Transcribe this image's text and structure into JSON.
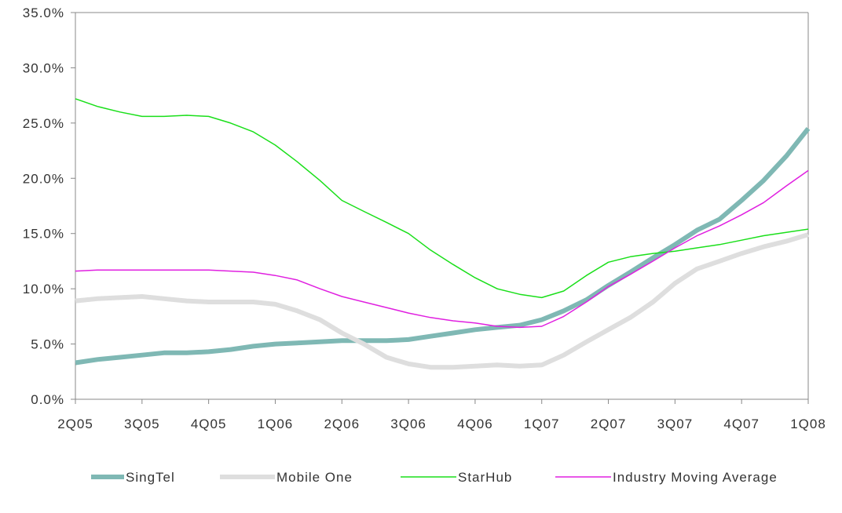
{
  "chart_data": {
    "type": "line",
    "title": "",
    "xlabel": "",
    "ylabel": "",
    "categories": [
      "2Q05",
      "3Q05",
      "4Q05",
      "1Q06",
      "2Q06",
      "3Q06",
      "4Q06",
      "1Q07",
      "2Q07",
      "3Q07",
      "4Q07",
      "1Q08"
    ],
    "y_ticks": [
      "0.0%",
      "5.0%",
      "10.0%",
      "15.0%",
      "20.0%",
      "25.0%",
      "30.0%",
      "35.0%"
    ],
    "ylim": [
      0,
      35
    ],
    "grid": false,
    "legend_position": "bottom",
    "series": [
      {
        "name": "SingTel",
        "color": "#7fb8b4",
        "width": 6,
        "x": [
          0,
          0.33,
          0.67,
          1,
          1.33,
          1.67,
          2,
          2.33,
          2.67,
          3,
          3.33,
          3.67,
          4,
          4.33,
          4.67,
          5,
          5.33,
          5.67,
          6,
          6.33,
          6.67,
          7,
          7.33,
          7.67,
          8,
          8.33,
          8.67,
          9,
          9.33,
          9.67,
          10,
          10.33,
          10.67,
          11
        ],
        "values": [
          3.3,
          3.6,
          3.8,
          4.0,
          4.2,
          4.2,
          4.3,
          4.5,
          4.8,
          5.0,
          5.1,
          5.2,
          5.3,
          5.3,
          5.3,
          5.4,
          5.7,
          6.0,
          6.3,
          6.5,
          6.7,
          7.2,
          8.0,
          9.0,
          10.3,
          11.5,
          12.8,
          14.0,
          15.3,
          16.3,
          18.0,
          19.8,
          22.0,
          24.5
        ]
      },
      {
        "name": "Mobile One",
        "color": "#dedede",
        "width": 6,
        "x": [
          0,
          0.33,
          0.67,
          1,
          1.33,
          1.67,
          2,
          2.33,
          2.67,
          3,
          3.33,
          3.67,
          4,
          4.33,
          4.67,
          5,
          5.33,
          5.67,
          6,
          6.33,
          6.67,
          7,
          7.33,
          7.67,
          8,
          8.33,
          8.67,
          9,
          9.33,
          9.67,
          10,
          10.33,
          10.67,
          11
        ],
        "values": [
          8.9,
          9.1,
          9.2,
          9.3,
          9.1,
          8.9,
          8.8,
          8.8,
          8.8,
          8.6,
          8.0,
          7.2,
          6.0,
          5.0,
          3.8,
          3.2,
          2.9,
          2.9,
          3.0,
          3.1,
          3.0,
          3.1,
          4.0,
          5.2,
          6.3,
          7.4,
          8.8,
          10.5,
          11.8,
          12.5,
          13.2,
          13.8,
          14.3,
          14.9
        ]
      },
      {
        "name": "StarHub",
        "color": "#1adf1a",
        "width": 1.5,
        "x": [
          0,
          0.33,
          0.67,
          1,
          1.33,
          1.67,
          2,
          2.33,
          2.67,
          3,
          3.33,
          3.67,
          4,
          4.33,
          4.67,
          5,
          5.33,
          5.67,
          6,
          6.33,
          6.67,
          7,
          7.33,
          7.67,
          8,
          8.33,
          8.67,
          9,
          9.33,
          9.67,
          10,
          10.33,
          10.67,
          11
        ],
        "values": [
          27.2,
          26.5,
          26.0,
          25.6,
          25.6,
          25.7,
          25.6,
          25.0,
          24.2,
          23.0,
          21.5,
          19.8,
          18.0,
          17.0,
          16.0,
          15.0,
          13.5,
          12.2,
          11.0,
          10.0,
          9.5,
          9.2,
          9.8,
          11.2,
          12.4,
          12.9,
          13.2,
          13.4,
          13.7,
          14.0,
          14.4,
          14.8,
          15.1,
          15.4
        ]
      },
      {
        "name": "Industry Moving Average",
        "color": "#e020e0",
        "width": 1.5,
        "x": [
          0,
          0.33,
          0.67,
          1,
          1.33,
          1.67,
          2,
          2.33,
          2.67,
          3,
          3.33,
          3.67,
          4,
          4.33,
          4.67,
          5,
          5.33,
          5.67,
          6,
          6.33,
          6.67,
          7,
          7.33,
          7.67,
          8,
          8.33,
          8.67,
          9,
          9.33,
          9.67,
          10,
          10.33,
          10.67,
          11
        ],
        "values": [
          11.6,
          11.7,
          11.7,
          11.7,
          11.7,
          11.7,
          11.7,
          11.6,
          11.5,
          11.2,
          10.8,
          10.0,
          9.3,
          8.8,
          8.3,
          7.8,
          7.4,
          7.1,
          6.9,
          6.6,
          6.5,
          6.6,
          7.5,
          8.8,
          10.2,
          11.3,
          12.5,
          13.7,
          14.8,
          15.7,
          16.7,
          17.8,
          19.3,
          20.7
        ]
      }
    ]
  }
}
